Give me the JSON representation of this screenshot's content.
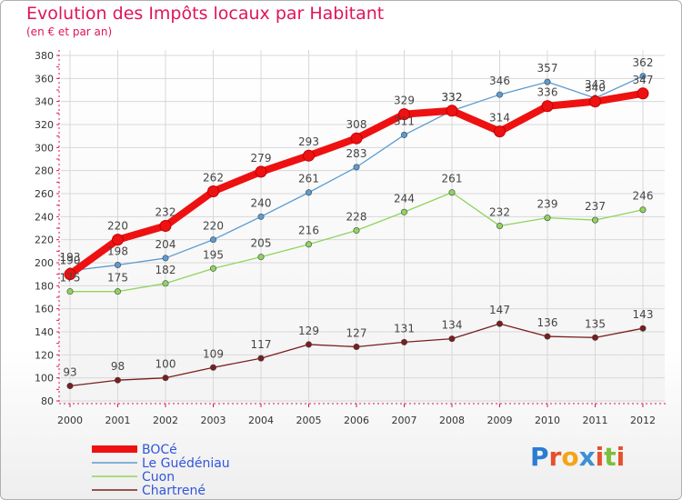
{
  "title": "Evolution des Impôts locaux par Habitant",
  "subtitle": "(en € et par an)",
  "logo": {
    "text": "Proxiti",
    "letters": [
      {
        "ch": "P",
        "color": "#2a7dd1"
      },
      {
        "ch": "r",
        "color": "#e8502a"
      },
      {
        "ch": "o",
        "color": "#f2a516"
      },
      {
        "ch": "x",
        "color": "#3d8fd6"
      },
      {
        "ch": "i",
        "color": "#e8502a"
      },
      {
        "ch": "t",
        "color": "#7cbf3a"
      },
      {
        "ch": "i",
        "color": "#e8502a"
      }
    ]
  },
  "chart_data": {
    "type": "line",
    "x": [
      "2000",
      "2001",
      "2002",
      "2003",
      "2004",
      "2005",
      "2006",
      "2007",
      "2008",
      "2009",
      "2010",
      "2011",
      "2012"
    ],
    "ylim": [
      80,
      380
    ],
    "yticks": [
      80,
      100,
      120,
      140,
      160,
      180,
      200,
      220,
      240,
      260,
      280,
      300,
      320,
      340,
      360,
      380
    ],
    "grid": true,
    "legend_position": "bottom-left",
    "series": [
      {
        "name": "BOCé",
        "color": "#ee1111",
        "values": [
          190,
          220,
          232,
          262,
          279,
          293,
          308,
          329,
          332,
          314,
          336,
          340,
          347
        ],
        "labels": [
          "190",
          "220",
          "232",
          "262",
          "279",
          "293",
          "308",
          "329",
          "332",
          "314",
          "336",
          "340",
          "347"
        ]
      },
      {
        "name": "Le Guédéniau",
        "color": "#5b9bd0",
        "values": [
          193,
          198,
          204,
          220,
          240,
          261,
          283,
          311,
          332,
          346,
          357,
          343,
          362
        ],
        "labels": [
          "193",
          "198",
          "204",
          "220",
          "240",
          "261",
          "283",
          "311",
          "332",
          "346",
          "357",
          "343",
          "362"
        ]
      },
      {
        "name": "Cuon",
        "color": "#8fd45c",
        "values": [
          175,
          175,
          182,
          195,
          205,
          216,
          228,
          244,
          261,
          232,
          239,
          237,
          246
        ],
        "labels": [
          "175",
          "175",
          "182",
          "195",
          "205",
          "216",
          "228",
          "244",
          "261",
          "232",
          "239",
          "237",
          "246"
        ]
      },
      {
        "name": "Chartrené",
        "color": "#7a1e1e",
        "values": [
          93,
          98,
          100,
          109,
          117,
          129,
          127,
          131,
          134,
          147,
          136,
          135,
          143
        ],
        "labels": [
          "93",
          "98",
          "100",
          "109",
          "117",
          "129",
          "127",
          "131",
          "134",
          "147",
          "136",
          "135",
          "143"
        ]
      }
    ]
  }
}
